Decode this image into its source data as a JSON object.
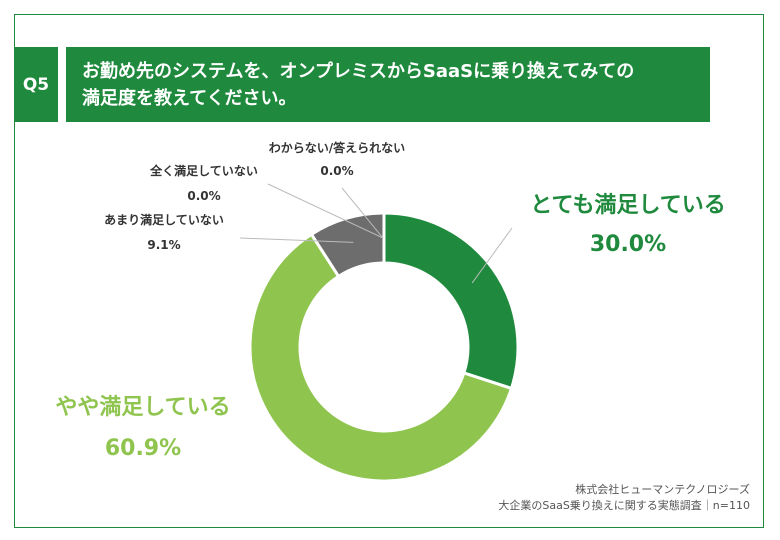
{
  "header": {
    "badge": "Q5",
    "title_line1": "お勤め先のシステムを、オンプレミスからSaaSに乗り換えてみての",
    "title_line2": "満足度を教えてください。"
  },
  "source": {
    "line1": "株式会社ヒューマンテクノロジーズ",
    "line2": "大企業のSaaS乗り換えに関する実態調査｜n=110"
  },
  "colors": {
    "brand_green": "#1f8a3d",
    "light_green": "#8fc44f",
    "gray": "#6d6d6d"
  },
  "chart_data": {
    "type": "pie",
    "variant": "donut",
    "title": "",
    "categories": [
      "とても満足している",
      "やや満足している",
      "あまり満足していない",
      "全く満足していない",
      "わからない/答えられない"
    ],
    "values": [
      30.0,
      60.9,
      9.1,
      0.0,
      0.0
    ],
    "value_labels": [
      "30.0%",
      "60.9%",
      "9.1%",
      "0.0%",
      "0.0%"
    ],
    "colors": [
      "#1f8a3d",
      "#8fc44f",
      "#6d6d6d",
      "#4a4a4a",
      "#9a9a9a"
    ],
    "start_angle": "12 o'clock",
    "direction": "clockwise"
  }
}
